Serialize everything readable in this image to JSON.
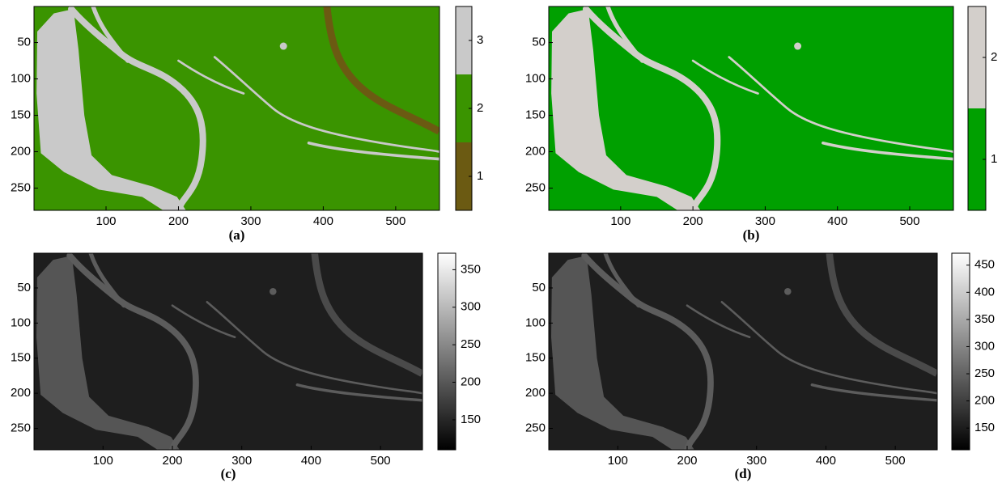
{
  "chart_data": [
    {
      "type": "image",
      "caption": "(a)",
      "xlim": [
        0.5,
        560.5
      ],
      "ylim": [
        0.5,
        280.5
      ],
      "xticks": [
        100,
        200,
        300,
        400,
        500
      ],
      "yticks": [
        50,
        100,
        150,
        200,
        250
      ],
      "colorbar": {
        "clim": [
          0.5,
          3.5
        ],
        "ticks": [
          1,
          2,
          3
        ],
        "colors": [
          "#6b5a12",
          "#3a9400",
          "#c9c9c9"
        ]
      }
    },
    {
      "type": "image",
      "caption": "(b)",
      "xlim": [
        0.5,
        560.5
      ],
      "ylim": [
        0.5,
        280.5
      ],
      "xticks": [
        100,
        200,
        300,
        400,
        500
      ],
      "yticks": [
        50,
        100,
        150,
        200,
        250
      ],
      "colorbar": {
        "clim": [
          0.5,
          2.5
        ],
        "ticks": [
          1,
          2
        ],
        "colors": [
          "#00a000",
          "#d3cfcb"
        ]
      }
    },
    {
      "type": "image",
      "caption": "(c)",
      "xlim": [
        0.5,
        560.5
      ],
      "ylim": [
        0.5,
        280.5
      ],
      "xticks": [
        100,
        200,
        300,
        400,
        500
      ],
      "yticks": [
        50,
        100,
        150,
        200,
        250
      ],
      "colorbar": {
        "clim": [
          110,
          372
        ],
        "ticks": [
          150,
          200,
          250,
          300,
          350
        ],
        "colormap": "gray"
      }
    },
    {
      "type": "image",
      "caption": "(d)",
      "xlim": [
        0.5,
        560.5
      ],
      "ylim": [
        0.5,
        280.5
      ],
      "xticks": [
        100,
        200,
        300,
        400,
        500
      ],
      "yticks": [
        50,
        100,
        150,
        200,
        250
      ],
      "colorbar": {
        "clim": [
          110,
          472
        ],
        "ticks": [
          150,
          200,
          250,
          300,
          350,
          400,
          450
        ],
        "colormap": "gray"
      }
    }
  ]
}
